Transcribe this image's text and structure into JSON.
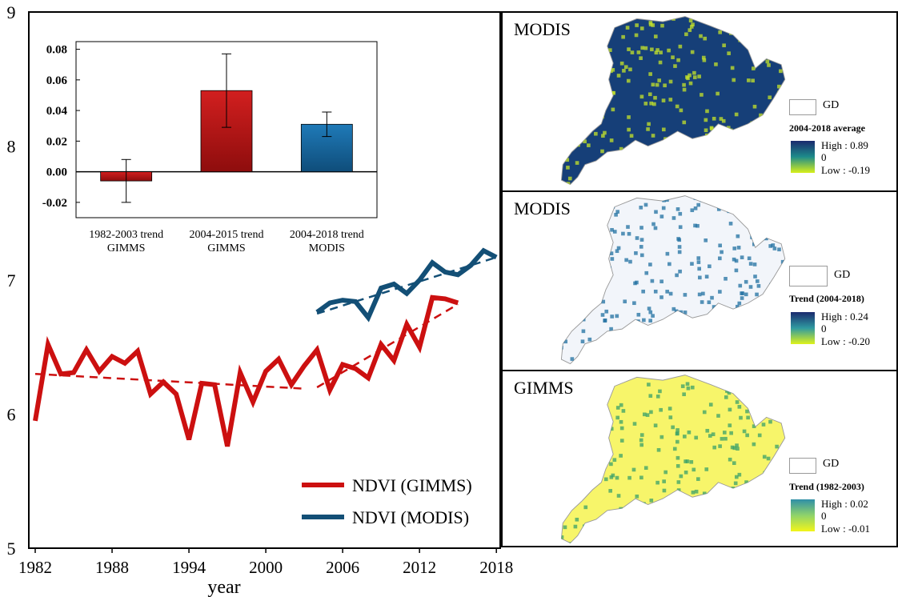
{
  "chart_data": [
    {
      "type": "line",
      "xlabel": "year",
      "xlim": [
        1981.5,
        2018.3
      ],
      "ylim": [
        5,
        9
      ],
      "xticks": [
        "1982",
        "1988",
        "1994",
        "2000",
        "2006",
        "2012",
        "2018"
      ],
      "xtick_values": [
        1982,
        1988,
        1994,
        2000,
        2006,
        2012,
        2018
      ],
      "yticks": [
        "5",
        "6",
        "7",
        "8",
        "9"
      ],
      "ytick_values": [
        5,
        6,
        7,
        8,
        9
      ],
      "colors": {
        "gimms": "#cc1010",
        "modis": "#134f76"
      },
      "series": [
        {
          "name": "NDVI (GIMMS)",
          "x": [
            1982,
            1983,
            1984,
            1985,
            1986,
            1987,
            1988,
            1989,
            1990,
            1991,
            1992,
            1993,
            1994,
            1995,
            1996,
            1997,
            1998,
            1999,
            2000,
            2001,
            2002,
            2003,
            2004,
            2005,
            2006,
            2007,
            2008,
            2009,
            2010,
            2011,
            2012,
            2013,
            2014,
            2015
          ],
          "y": [
            5.95,
            6.52,
            6.3,
            6.31,
            6.48,
            6.32,
            6.43,
            6.38,
            6.47,
            6.15,
            6.24,
            6.15,
            5.81,
            6.23,
            6.22,
            5.76,
            6.31,
            6.09,
            6.32,
            6.41,
            6.22,
            6.36,
            6.48,
            6.18,
            6.37,
            6.34,
            6.27,
            6.52,
            6.4,
            6.67,
            6.5,
            6.87,
            6.86,
            6.83
          ]
        },
        {
          "name": "NDVI (MODIS)",
          "x": [
            2004,
            2005,
            2006,
            2007,
            2008,
            2009,
            2010,
            2011,
            2012,
            2013,
            2014,
            2015,
            2016,
            2017,
            2018
          ],
          "y": [
            6.76,
            6.83,
            6.85,
            6.84,
            6.72,
            6.94,
            6.97,
            6.9,
            7.0,
            7.13,
            7.06,
            7.04,
            7.11,
            7.22,
            7.17
          ]
        }
      ],
      "trend_lines": [
        {
          "series": "NDVI (GIMMS)",
          "x": [
            1982,
            2003
          ],
          "y": [
            6.3,
            6.19
          ]
        },
        {
          "series": "NDVI (GIMMS)",
          "x": [
            2004,
            2015
          ],
          "y": [
            6.2,
            6.82
          ]
        },
        {
          "series": "NDVI (MODIS)",
          "x": [
            2004,
            2018
          ],
          "y": [
            6.75,
            7.17
          ]
        }
      ],
      "legend": {
        "position": "bottom-right",
        "entries": [
          "NDVI (GIMMS)",
          "NDVI (MODIS)"
        ]
      }
    },
    {
      "type": "bar",
      "categories": [
        [
          "1982-2003 trend",
          "GIMMS"
        ],
        [
          "2004-2015 trend",
          "GIMMS"
        ],
        [
          "2004-2018 trend",
          "MODIS"
        ]
      ],
      "values": [
        -0.006,
        0.053,
        0.031
      ],
      "error_low": [
        -0.02,
        0.029,
        0.023
      ],
      "error_high": [
        0.008,
        0.077,
        0.039
      ],
      "colors": [
        "#b31b1b",
        "#b31b1b",
        "#125e93"
      ],
      "ylim": [
        -0.03,
        0.085
      ],
      "yticks": [
        "0.08",
        "0.06",
        "0.04",
        "0.02",
        "0.00",
        "-0.02"
      ],
      "ytick_values": [
        0.08,
        0.06,
        0.04,
        0.02,
        0.0,
        -0.02
      ]
    }
  ],
  "maps": [
    {
      "title": "MODIS",
      "gd_label": "GD",
      "legend_title": "2004-2018 average",
      "high_label": "High : 0.89",
      "mid_label": "0",
      "low_label": "Low : -0.19",
      "ramp_top": "#1a2a6e",
      "ramp_mid": "#1d8b8a",
      "ramp_bottom": "#d8ef1a",
      "fill_base": "#163f78",
      "fill_accent": "#c5e42a"
    },
    {
      "title": "MODIS",
      "gd_label": "GD",
      "legend_title": "Trend (2004-2018)",
      "high_label": "High : 0.24",
      "mid_label": "0",
      "low_label": "Low : -0.20",
      "ramp_top": "#1a2a6e",
      "ramp_mid": "#2f9aa0",
      "ramp_bottom": "#dff21a",
      "fill_base": "#f2f5fa",
      "fill_accent": "#1f6fa0"
    },
    {
      "title": "GIMMS",
      "gd_label": "GD",
      "legend_title": "Trend (1982-2003)",
      "high_label": "High : 0.02",
      "mid_label": "0",
      "low_label": "Low : -0.01",
      "ramp_top": "#2f8fa8",
      "ramp_mid": "#8fd36a",
      "ramp_bottom": "#f2f51a",
      "fill_base": "#f7f56a",
      "fill_accent": "#3aa06a"
    }
  ]
}
